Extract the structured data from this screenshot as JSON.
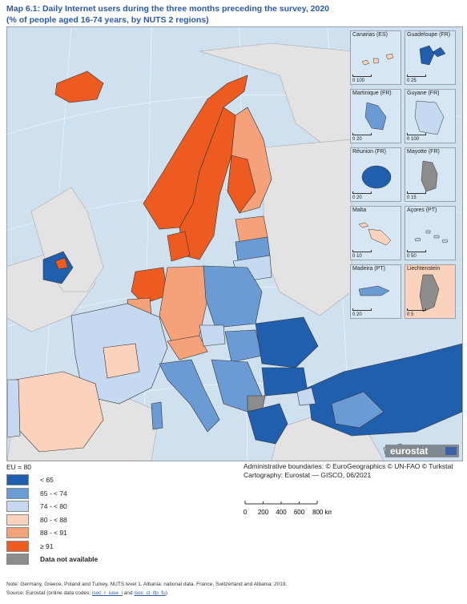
{
  "title": {
    "label": "Map 6.1:",
    "text": "Daily Internet users during the three months preceding the survey, 2020",
    "subtitle": "(% of people aged 16-74 years, by NUTS 2 regions)"
  },
  "insets": [
    {
      "name": "Canarias (ES)",
      "scale": "0  100"
    },
    {
      "name": "Guadeloupe (FR)",
      "scale": "0  25"
    },
    {
      "name": "Martinique (FR)",
      "scale": "0  20"
    },
    {
      "name": "Guyane (FR)",
      "scale": "0  100"
    },
    {
      "name": "Réunion (FR)",
      "scale": "0  20"
    },
    {
      "name": "Mayotte (FR)",
      "scale": "0  15"
    },
    {
      "name": "Malta",
      "scale": "0  10"
    },
    {
      "name": "Açores (PT)",
      "scale": "0  50"
    },
    {
      "name": "Madeira (PT)",
      "scale": "0  20"
    },
    {
      "name": "Liechtenstein",
      "scale": "0  5"
    }
  ],
  "legend": {
    "reference": "EU = 80",
    "classes": [
      {
        "label": "< 65",
        "color": "#1f5fad"
      },
      {
        "label": "65 - < 74",
        "color": "#6a9bd4"
      },
      {
        "label": "74 - < 80",
        "color": "#c5daf0"
      },
      {
        "label": "80 - < 88",
        "color": "#fbd3bd"
      },
      {
        "label": "88 - < 91",
        "color": "#f5a27a"
      },
      {
        "label": "≥ 91",
        "color": "#ee5b21"
      },
      {
        "label": "Data not available",
        "color": "#8c8c8c"
      }
    ]
  },
  "credits": {
    "boundaries": "Administrative boundaries: © EuroGeographics © UN-FAO © Turkstat",
    "cartography": "Cartography: Eurostat — GISCO, 06/2021"
  },
  "scale": {
    "ticks": [
      "0",
      "200",
      "400",
      "600",
      "800 km"
    ]
  },
  "logo": "eurostat",
  "footer": {
    "note": "Note: Germany, Greece, Poland and Turkey, NUTS level 1. Albania: national data. France, Switzerland and Albania: 2019.",
    "source_prefix": "Source: Eurostat (online data codes: ",
    "code1": "isoc_r_iuse_i",
    "and": " and ",
    "code2": "isoc_ci_ifp_fu",
    "source_suffix": ")"
  },
  "colors": {
    "sea": "#cfe0ef",
    "non_eu_land": "#e3e3e3",
    "link": "#2b5aa7"
  }
}
